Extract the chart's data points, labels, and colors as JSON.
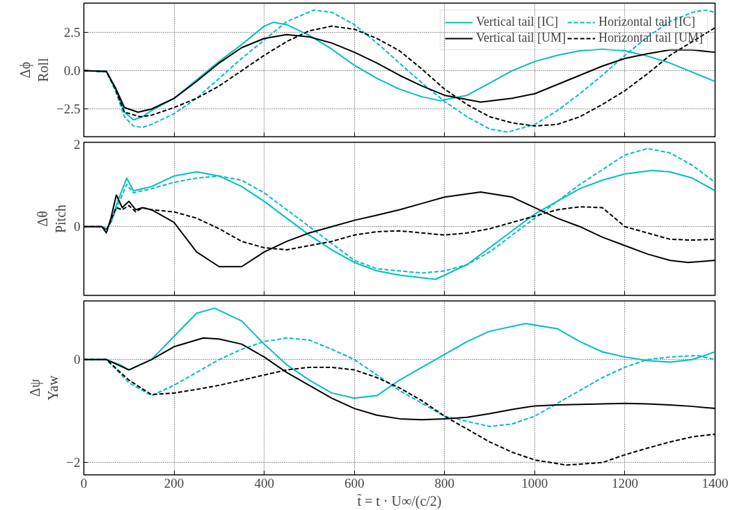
{
  "chart_data": [
    {
      "type": "line",
      "ylabel": "Δϕ\nRoll",
      "xlim": [
        0,
        1400
      ],
      "xticks": [
        0,
        200,
        400,
        600,
        800,
        1000,
        1200,
        1400
      ],
      "ylim": [
        -4.3,
        4.4
      ],
      "yticks": [
        {
          "value": -2.5,
          "label": "−2.5"
        },
        {
          "value": 0,
          "label": "0.0"
        },
        {
          "value": 2.5,
          "label": "2.5"
        }
      ],
      "grid": true,
      "legend": "top right",
      "tick_labels": "y",
      "series": [
        {
          "name": "Vertical tail [IC]",
          "color": "#00bfbf",
          "line_style": "solid",
          "x": [
            0,
            50,
            70,
            90,
            110,
            130,
            150,
            200,
            250,
            300,
            350,
            400,
            420,
            450,
            500,
            550,
            600,
            650,
            700,
            750,
            790,
            850,
            900,
            950,
            1000,
            1050,
            1100,
            1150,
            1200,
            1250,
            1300,
            1350,
            1400
          ],
          "values": [
            0,
            -0.05,
            -1.2,
            -2.7,
            -3.2,
            -3.0,
            -2.6,
            -1.8,
            -0.6,
            0.6,
            1.7,
            2.9,
            3.15,
            3.0,
            2.3,
            1.4,
            0.35,
            -0.5,
            -1.2,
            -1.7,
            -1.95,
            -1.6,
            -0.8,
            0.0,
            0.6,
            1.0,
            1.3,
            1.4,
            1.3,
            0.95,
            0.5,
            -0.1,
            -0.7
          ]
        },
        {
          "name": "Horizontal tail [IC]",
          "color": "#00bfbf",
          "line_style": "dashed",
          "x": [
            0,
            50,
            70,
            90,
            110,
            130,
            150,
            200,
            250,
            300,
            350,
            400,
            450,
            510,
            550,
            600,
            650,
            700,
            750,
            800,
            850,
            900,
            940,
            1000,
            1050,
            1100,
            1150,
            1200,
            1250,
            1300,
            1350,
            1380,
            1400
          ],
          "values": [
            0,
            -0.05,
            -1.3,
            -3.0,
            -3.6,
            -3.7,
            -3.5,
            -2.8,
            -1.8,
            -0.5,
            0.8,
            2.0,
            3.2,
            3.95,
            3.8,
            3.0,
            1.8,
            0.5,
            -0.8,
            -2.0,
            -3.0,
            -3.8,
            -4.0,
            -3.5,
            -2.6,
            -1.5,
            -0.3,
            1.0,
            2.2,
            3.2,
            3.8,
            3.95,
            3.8
          ]
        },
        {
          "name": "Vertical tail [UM]",
          "color": "#000000",
          "line_style": "solid",
          "x": [
            0,
            50,
            70,
            90,
            120,
            150,
            200,
            250,
            300,
            350,
            400,
            450,
            500,
            550,
            600,
            650,
            700,
            750,
            800,
            880,
            950,
            1000,
            1050,
            1100,
            1150,
            1200,
            1250,
            1300,
            1350,
            1400
          ],
          "values": [
            0,
            -0.05,
            -1.1,
            -2.4,
            -2.7,
            -2.5,
            -1.8,
            -0.7,
            0.5,
            1.5,
            2.1,
            2.35,
            2.2,
            1.8,
            1.2,
            0.5,
            -0.3,
            -1.0,
            -1.6,
            -2.05,
            -1.8,
            -1.5,
            -0.9,
            -0.3,
            0.3,
            0.8,
            1.1,
            1.35,
            1.35,
            1.2
          ]
        },
        {
          "name": "Horizontal tail [UM]",
          "color": "#000000",
          "line_style": "dashed",
          "x": [
            0,
            50,
            70,
            90,
            125,
            150,
            200,
            250,
            300,
            350,
            400,
            450,
            500,
            550,
            600,
            650,
            700,
            750,
            800,
            850,
            900,
            950,
            1000,
            1050,
            1100,
            1150,
            1200,
            1250,
            1300,
            1350,
            1400
          ],
          "values": [
            0,
            -0.05,
            -1.2,
            -2.7,
            -3.0,
            -2.9,
            -2.4,
            -1.8,
            -1.0,
            0.0,
            1.0,
            1.9,
            2.6,
            2.9,
            2.7,
            2.1,
            1.3,
            0.1,
            -1.2,
            -2.2,
            -3.0,
            -3.4,
            -3.6,
            -3.5,
            -3.0,
            -2.2,
            -1.3,
            -0.2,
            1.0,
            1.9,
            2.8
          ]
        }
      ]
    },
    {
      "type": "line",
      "ylabel": "Δθ\nPitch",
      "xlim": [
        0,
        1400
      ],
      "xticks": [
        0,
        200,
        400,
        600,
        800,
        1000,
        1200,
        1400
      ],
      "ylim": [
        -1.63,
        2
      ],
      "yticks": [
        {
          "value": 0,
          "label": "0"
        },
        {
          "value": 2,
          "label": "2"
        }
      ],
      "grid": true,
      "tick_labels": "y",
      "series": [
        {
          "color": "#00bfbf",
          "line_style": "solid",
          "x": [
            0,
            40,
            50,
            60,
            75,
            95,
            110,
            130,
            150,
            200,
            250,
            300,
            350,
            400,
            450,
            500,
            550,
            600,
            650,
            700,
            780,
            850,
            900,
            950,
            1000,
            1050,
            1100,
            1150,
            1200,
            1260,
            1300,
            1350,
            1400
          ],
          "values": [
            0,
            0,
            -0.05,
            0.1,
            0.6,
            1.15,
            0.85,
            0.9,
            0.95,
            1.2,
            1.3,
            1.2,
            0.95,
            0.6,
            0.2,
            -0.2,
            -0.55,
            -0.85,
            -1.05,
            -1.15,
            -1.25,
            -0.9,
            -0.5,
            -0.1,
            0.3,
            0.6,
            0.9,
            1.1,
            1.25,
            1.33,
            1.3,
            1.15,
            0.85
          ]
        },
        {
          "color": "#00bfbf",
          "line_style": "dashed",
          "x": [
            0,
            40,
            50,
            60,
            75,
            95,
            110,
            130,
            150,
            200,
            250,
            300,
            350,
            400,
            450,
            500,
            550,
            600,
            650,
            700,
            750,
            800,
            850,
            900,
            950,
            1000,
            1050,
            1100,
            1150,
            1200,
            1250,
            1300,
            1350,
            1400
          ],
          "values": [
            0,
            0,
            -0.05,
            0.1,
            0.5,
            1.0,
            0.8,
            0.85,
            0.9,
            1.05,
            1.15,
            1.2,
            1.1,
            0.8,
            0.4,
            0.0,
            -0.4,
            -0.8,
            -1.0,
            -1.05,
            -1.1,
            -1.05,
            -0.9,
            -0.6,
            -0.2,
            0.2,
            0.6,
            1.0,
            1.35,
            1.7,
            1.85,
            1.75,
            1.45,
            1.05
          ]
        },
        {
          "color": "#000000",
          "line_style": "solid",
          "x": [
            0,
            40,
            50,
            60,
            72,
            85,
            100,
            115,
            130,
            150,
            200,
            250,
            300,
            350,
            400,
            450,
            500,
            550,
            600,
            650,
            700,
            750,
            800,
            880,
            950,
            1000,
            1050,
            1100,
            1150,
            1200,
            1250,
            1300,
            1340,
            1400
          ],
          "values": [
            0,
            0,
            -0.15,
            0.2,
            0.75,
            0.45,
            0.6,
            0.4,
            0.45,
            0.4,
            0.1,
            -0.6,
            -0.95,
            -0.95,
            -0.6,
            -0.35,
            -0.15,
            0.0,
            0.15,
            0.27,
            0.4,
            0.55,
            0.7,
            0.82,
            0.7,
            0.45,
            0.2,
            0.0,
            -0.25,
            -0.45,
            -0.65,
            -0.8,
            -0.85,
            -0.8
          ]
        },
        {
          "color": "#000000",
          "line_style": "dashed",
          "x": [
            0,
            40,
            50,
            60,
            72,
            85,
            100,
            115,
            130,
            150,
            200,
            250,
            300,
            350,
            400,
            450,
            500,
            550,
            600,
            650,
            700,
            750,
            800,
            850,
            900,
            950,
            1000,
            1050,
            1100,
            1150,
            1200,
            1250,
            1300,
            1350,
            1400
          ],
          "values": [
            0,
            0,
            -0.1,
            0.15,
            0.45,
            0.4,
            0.5,
            0.35,
            0.45,
            0.4,
            0.35,
            0.2,
            -0.05,
            -0.35,
            -0.5,
            -0.55,
            -0.45,
            -0.35,
            -0.2,
            -0.12,
            -0.1,
            -0.15,
            -0.2,
            -0.15,
            -0.05,
            0.1,
            0.25,
            0.4,
            0.47,
            0.45,
            0.0,
            -0.15,
            -0.3,
            -0.32,
            -0.3
          ]
        }
      ]
    },
    {
      "type": "line",
      "ylabel": "Δψ\nYaw",
      "xlabel": "t̃ = t · U∞/(c/2)",
      "xlim": [
        0,
        1400
      ],
      "xticks": [
        0,
        200,
        400,
        600,
        800,
        1000,
        1200,
        1400
      ],
      "ylim": [
        -2.24,
        1.14
      ],
      "yticks": [
        {
          "value": -2,
          "label": "−2"
        },
        {
          "value": 0,
          "label": "0"
        }
      ],
      "grid": true,
      "series": [
        {
          "color": "#00bfbf",
          "line_style": "solid",
          "x": [
            0,
            50,
            80,
            100,
            150,
            200,
            250,
            290,
            350,
            400,
            450,
            500,
            550,
            600,
            650,
            700,
            750,
            800,
            850,
            900,
            980,
            1050,
            1100,
            1150,
            1200,
            1250,
            1300,
            1350,
            1400
          ],
          "values": [
            0,
            0,
            -0.1,
            -0.2,
            0.0,
            0.45,
            0.9,
            1.0,
            0.75,
            0.3,
            -0.1,
            -0.4,
            -0.65,
            -0.75,
            -0.7,
            -0.4,
            -0.15,
            0.1,
            0.35,
            0.55,
            0.7,
            0.6,
            0.35,
            0.15,
            0.05,
            -0.02,
            -0.05,
            0.0,
            0.15
          ]
        },
        {
          "color": "#00bfbf",
          "line_style": "dashed",
          "x": [
            0,
            50,
            100,
            150,
            200,
            250,
            300,
            350,
            400,
            450,
            500,
            550,
            600,
            650,
            700,
            750,
            800,
            850,
            900,
            950,
            1000,
            1050,
            1100,
            1150,
            1200,
            1250,
            1300,
            1360,
            1400
          ],
          "values": [
            0,
            0,
            -0.45,
            -0.7,
            -0.5,
            -0.25,
            0.0,
            0.2,
            0.35,
            0.42,
            0.38,
            0.2,
            0.0,
            -0.3,
            -0.6,
            -0.85,
            -1.1,
            -1.2,
            -1.3,
            -1.25,
            -1.1,
            -0.85,
            -0.6,
            -0.35,
            -0.15,
            0.0,
            0.05,
            0.08,
            0.0
          ]
        },
        {
          "color": "#000000",
          "line_style": "solid",
          "x": [
            0,
            50,
            100,
            150,
            200,
            265,
            300,
            350,
            400,
            450,
            500,
            550,
            600,
            650,
            700,
            750,
            800,
            850,
            900,
            950,
            1000,
            1050,
            1100,
            1150,
            1200,
            1250,
            1300,
            1350,
            1400
          ],
          "values": [
            0,
            0,
            -0.2,
            0.0,
            0.25,
            0.42,
            0.4,
            0.3,
            0.05,
            -0.25,
            -0.5,
            -0.75,
            -0.95,
            -1.08,
            -1.15,
            -1.17,
            -1.15,
            -1.12,
            -1.05,
            -0.97,
            -0.9,
            -0.88,
            -0.87,
            -0.86,
            -0.85,
            -0.86,
            -0.88,
            -0.91,
            -0.95
          ]
        },
        {
          "color": "#000000",
          "line_style": "dashed",
          "x": [
            0,
            50,
            100,
            150,
            200,
            250,
            300,
            350,
            400,
            450,
            500,
            550,
            600,
            650,
            700,
            750,
            800,
            850,
            900,
            950,
            1000,
            1070,
            1150,
            1200,
            1250,
            1300,
            1350,
            1400
          ],
          "values": [
            0,
            0,
            -0.4,
            -0.68,
            -0.65,
            -0.58,
            -0.5,
            -0.4,
            -0.3,
            -0.2,
            -0.15,
            -0.15,
            -0.2,
            -0.35,
            -0.55,
            -0.8,
            -1.1,
            -1.35,
            -1.6,
            -1.8,
            -1.95,
            -2.05,
            -2.0,
            -1.85,
            -1.72,
            -1.6,
            -1.5,
            -1.45
          ]
        }
      ]
    }
  ]
}
